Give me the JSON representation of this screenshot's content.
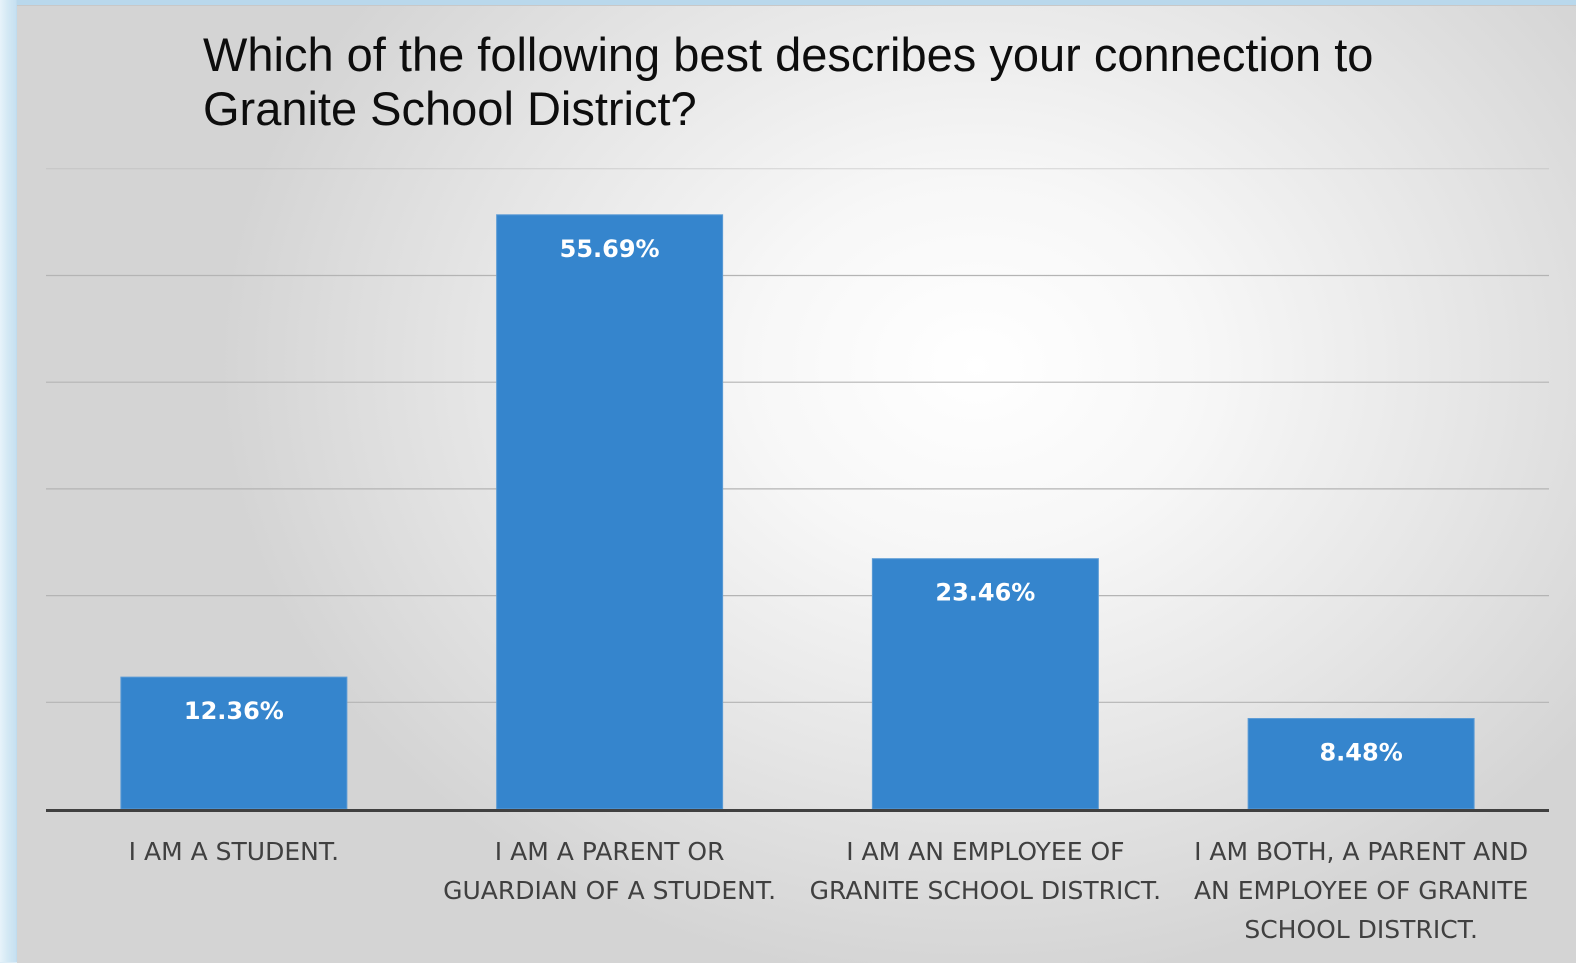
{
  "chart_data": {
    "type": "bar",
    "title": "Which of the following best describes your connection to Granite School District?",
    "categories": [
      "I AM A STUDENT.",
      "I AM A PARENT OR GUARDIAN OF A STUDENT.",
      "I AM AN EMPLOYEE OF GRANITE SCHOOL DISTRICT.",
      "I AM BOTH, A PARENT AND AN EMPLOYEE OF GRANITE SCHOOL DISTRICT."
    ],
    "category_lines": [
      [
        "I AM A STUDENT."
      ],
      [
        "I AM A PARENT OR",
        "GUARDIAN OF A STUDENT."
      ],
      [
        "I AM AN EMPLOYEE OF",
        "GRANITE SCHOOL DISTRICT."
      ],
      [
        "I AM BOTH, A PARENT AND",
        "AN EMPLOYEE OF GRANITE",
        "SCHOOL DISTRICT."
      ]
    ],
    "values": [
      12.36,
      55.69,
      23.46,
      8.48
    ],
    "data_labels": [
      "12.36%",
      "55.69%",
      "23.46%",
      "8.48%"
    ],
    "ylim": [
      0,
      60
    ],
    "ytick_step": 10,
    "grid": true,
    "y_axis_visible": false,
    "bar_color": "#3585cd",
    "gridline_color": "#b4b4b4",
    "axis_color": "#404040"
  }
}
